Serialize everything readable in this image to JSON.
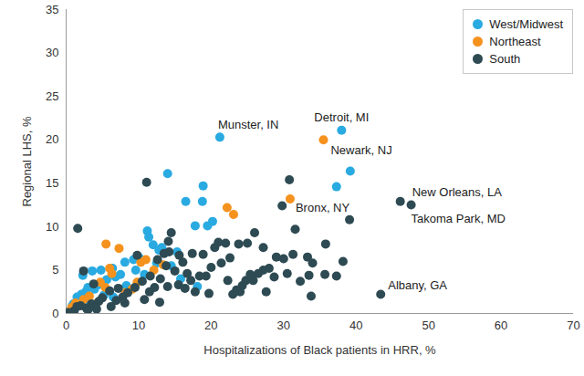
{
  "chart_data": {
    "type": "scatter",
    "x_label": "Hospitalizations of Black patients in HRR, %",
    "y_label": "Regional LHS, %",
    "xlim": [
      0,
      70
    ],
    "xticks": [
      0,
      10,
      20,
      30,
      40,
      50,
      60,
      70
    ],
    "ylim": [
      0,
      35
    ],
    "yticks": [
      0,
      5,
      10,
      15,
      20,
      25,
      30,
      35
    ],
    "grid": false,
    "legend": "top-right",
    "series": [
      {
        "name": "West/Midwest",
        "color": "#29aae1",
        "x": [
          21.2,
          38.0,
          14.0,
          39.2,
          37.3,
          18.9,
          16.5,
          18.8,
          20.2,
          19.5,
          17.8,
          11.2,
          11.4,
          12.0,
          13.2,
          15.3,
          12.8,
          10.1,
          9.3,
          8.1,
          6.4,
          4.8,
          3.6,
          2.3,
          4.4,
          5.6,
          6.8,
          7.5,
          9.6,
          3.0,
          2.1,
          1.5,
          1.0,
          0.8,
          1.8,
          2.6,
          0.5,
          5.2,
          6.5,
          8.3,
          10.8,
          12.5,
          14.5,
          15.8,
          2.7,
          3.9,
          1.2,
          18.1
        ],
        "values": [
          20.3,
          21.1,
          16.1,
          16.4,
          14.6,
          14.7,
          12.9,
          12.9,
          10.6,
          10.1,
          10.1,
          9.5,
          8.8,
          7.9,
          7.6,
          7.1,
          7.3,
          6.4,
          6.2,
          5.9,
          5.2,
          5.0,
          4.9,
          4.4,
          3.3,
          3.9,
          4.2,
          4.5,
          5.0,
          3.0,
          2.2,
          1.9,
          1.1,
          0.8,
          1.4,
          1.5,
          0.3,
          2.1,
          1.9,
          3.2,
          4.5,
          5.8,
          5.5,
          4.0,
          2.5,
          2.8,
          0.6,
          3.1
        ]
      },
      {
        "name": "Northeast",
        "color": "#f5921e",
        "x": [
          35.5,
          30.9,
          22.2,
          23.1,
          5.5,
          7.3,
          11.0,
          10.3,
          12.1,
          6.3,
          4.7,
          5.4,
          8.2,
          9.1,
          2.4,
          1.3,
          3.2,
          0.8,
          0.4,
          4.1,
          13.4,
          6.0,
          9.8
        ],
        "values": [
          20.0,
          13.2,
          12.2,
          11.4,
          8.0,
          7.5,
          6.2,
          5.9,
          5.0,
          4.6,
          3.6,
          3.0,
          2.4,
          2.8,
          1.6,
          1.2,
          2.0,
          0.7,
          0.2,
          1.1,
          5.6,
          5.2,
          3.6
        ]
      },
      {
        "name": "South",
        "color": "#2e4a53",
        "x": [
          46.1,
          47.6,
          43.4,
          1.6,
          11.1,
          30.8,
          29.8,
          39.1,
          31.6,
          35.8,
          26.0,
          23.8,
          22.0,
          25.0,
          20.5,
          27.2,
          29.0,
          30.0,
          31.3,
          33.3,
          34.0,
          33.5,
          35.7,
          37.3,
          38.2,
          33.8,
          28.0,
          27.2,
          26.5,
          25.4,
          24.8,
          24.3,
          23.5,
          23.0,
          24.0,
          22.3,
          22.6,
          21.4,
          20.0,
          19.3,
          18.4,
          17.2,
          16.1,
          14.5,
          14.1,
          14.2,
          12.6,
          13.8,
          15.0,
          16.7,
          15.5,
          14.0,
          13.0,
          12.2,
          11.5,
          10.5,
          9.5,
          8.5,
          7.8,
          6.9,
          6.0,
          5.0,
          4.5,
          3.5,
          2.8,
          2.0,
          1.1,
          0.3,
          1.5,
          2.4,
          3.8,
          7.2,
          10.8,
          11.6,
          9.8,
          13.5,
          17.8,
          19.7,
          21.0,
          28.7,
          30.5,
          32.3,
          27.6,
          25.8,
          18.9,
          16.4,
          12.9,
          8.1,
          6.2,
          4.2,
          3.0,
          17.4,
          15.6
        ],
        "values": [
          12.9,
          12.5,
          2.2,
          9.8,
          15.1,
          15.4,
          12.4,
          10.8,
          9.7,
          8.0,
          9.3,
          8.0,
          8.1,
          8.1,
          7.6,
          7.6,
          6.5,
          6.3,
          6.8,
          6.5,
          5.8,
          4.4,
          4.5,
          4.3,
          6.0,
          2.0,
          5.2,
          5.0,
          4.6,
          4.5,
          3.8,
          3.2,
          2.7,
          2.2,
          2.5,
          3.8,
          6.4,
          5.8,
          5.3,
          4.3,
          4.3,
          3.8,
          5.9,
          9.3,
          8.3,
          7.1,
          6.2,
          5.5,
          4.9,
          4.6,
          3.3,
          3.1,
          4.0,
          3.0,
          2.5,
          3.7,
          3.0,
          2.4,
          1.9,
          1.5,
          2.6,
          1.8,
          1.4,
          1.1,
          0.6,
          0.9,
          0.3,
          0.1,
          0.8,
          4.9,
          3.4,
          2.9,
          1.6,
          4.3,
          6.7,
          6.9,
          2.5,
          2.3,
          8.2,
          4.2,
          4.6,
          3.7,
          2.5,
          3.8,
          6.8,
          2.9,
          1.3,
          1.2,
          0.8,
          0.5,
          0.4,
          6.9,
          6.7
        ]
      }
    ],
    "annotations": [
      {
        "text": "Munster, IN",
        "x": 21.2,
        "y": 20.3
      },
      {
        "text": "Detroit, MI",
        "x": 38.0,
        "y": 21.1
      },
      {
        "text": "Newark, NJ",
        "x": 35.5,
        "y": 20.0
      },
      {
        "text": "Bronx, NY",
        "x": 30.9,
        "y": 13.2
      },
      {
        "text": "New Orleans, LA",
        "x": 46.1,
        "y": 12.9
      },
      {
        "text": "Takoma Park, MD",
        "x": 47.6,
        "y": 12.5
      },
      {
        "text": "Albany, GA",
        "x": 43.4,
        "y": 2.2
      }
    ]
  }
}
